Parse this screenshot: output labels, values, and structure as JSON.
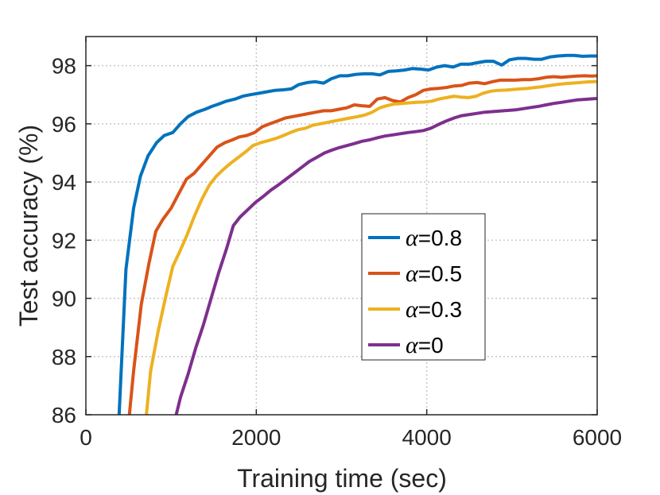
{
  "chart_data": {
    "type": "line",
    "xlabel": "Training time (sec)",
    "ylabel": "Test accuracy (%)",
    "xlim": [
      0,
      6000
    ],
    "ylim": [
      86,
      99
    ],
    "xticks": [
      0,
      2000,
      4000,
      6000
    ],
    "yticks": [
      86,
      88,
      90,
      92,
      94,
      96,
      98
    ],
    "grid": true,
    "legend_position": "center-right",
    "series": [
      {
        "name": "α=0.8",
        "color": "#0072BD",
        "x": [
          390,
          470,
          560,
          640,
          730,
          830,
          920,
          1020,
          1110,
          1200,
          1300,
          1400,
          1480,
          1560,
          1650,
          1750,
          1840,
          1930,
          2030,
          2120,
          2220,
          2320,
          2410,
          2500,
          2600,
          2690,
          2790,
          2880,
          2980,
          3070,
          3170,
          3260,
          3360,
          3450,
          3550,
          3640,
          3740,
          3830,
          3930,
          4020,
          4120,
          4210,
          4310,
          4400,
          4500,
          4590,
          4690,
          4780,
          4880,
          4970,
          5070,
          5160,
          5260,
          5350,
          5450,
          5540,
          5640,
          5730,
          5830,
          5920,
          6000
        ],
        "y": [
          86.0,
          91.0,
          93.1,
          94.2,
          94.9,
          95.35,
          95.6,
          95.7,
          96.0,
          96.25,
          96.4,
          96.5,
          96.6,
          96.68,
          96.78,
          96.85,
          96.95,
          97.0,
          97.05,
          97.1,
          97.15,
          97.17,
          97.2,
          97.35,
          97.42,
          97.45,
          97.4,
          97.55,
          97.65,
          97.65,
          97.7,
          97.72,
          97.72,
          97.68,
          97.8,
          97.82,
          97.85,
          97.9,
          97.88,
          97.85,
          97.95,
          98.0,
          97.95,
          98.05,
          98.05,
          98.1,
          98.15,
          98.15,
          98.02,
          98.2,
          98.25,
          98.25,
          98.22,
          98.22,
          98.3,
          98.33,
          98.35,
          98.35,
          98.32,
          98.33,
          98.33
        ]
      },
      {
        "name": "α=0.5",
        "color": "#D95319",
        "x": [
          510,
          560,
          650,
          740,
          820,
          900,
          1000,
          1090,
          1180,
          1270,
          1360,
          1450,
          1540,
          1630,
          1720,
          1800,
          1890,
          1980,
          2070,
          2160,
          2250,
          2340,
          2430,
          2520,
          2610,
          2700,
          2790,
          2880,
          2970,
          3060,
          3150,
          3240,
          3330,
          3420,
          3510,
          3600,
          3690,
          3780,
          3870,
          3960,
          4050,
          4140,
          4230,
          4320,
          4410,
          4500,
          4590,
          4680,
          4770,
          4860,
          4950,
          5040,
          5130,
          5220,
          5310,
          5400,
          5490,
          5580,
          5670,
          5760,
          5850,
          5940,
          6000
        ],
        "y": [
          86.0,
          87.5,
          89.8,
          91.2,
          92.3,
          92.7,
          93.1,
          93.6,
          94.1,
          94.3,
          94.6,
          94.9,
          95.2,
          95.35,
          95.45,
          95.55,
          95.6,
          95.7,
          95.9,
          96.0,
          96.1,
          96.2,
          96.25,
          96.3,
          96.35,
          96.4,
          96.45,
          96.45,
          96.5,
          96.55,
          96.65,
          96.62,
          96.6,
          96.85,
          96.9,
          96.8,
          96.75,
          96.9,
          97.0,
          97.15,
          97.2,
          97.22,
          97.25,
          97.3,
          97.32,
          97.4,
          97.42,
          97.38,
          97.45,
          97.5,
          97.5,
          97.5,
          97.52,
          97.52,
          97.55,
          97.6,
          97.62,
          97.6,
          97.62,
          97.64,
          97.65,
          97.64,
          97.65
        ]
      },
      {
        "name": "α=0.3",
        "color": "#EDB120",
        "x": [
          710,
          760,
          850,
          940,
          1020,
          1100,
          1190,
          1270,
          1360,
          1450,
          1530,
          1620,
          1700,
          1790,
          1880,
          1960,
          2050,
          2140,
          2230,
          2320,
          2400,
          2490,
          2580,
          2660,
          2750,
          2840,
          2920,
          3010,
          3100,
          3190,
          3270,
          3360,
          3450,
          3530,
          3620,
          3710,
          3790,
          3880,
          3970,
          4060,
          4140,
          4230,
          4320,
          4400,
          4490,
          4580,
          4660,
          4750,
          4840,
          4930,
          5010,
          5100,
          5190,
          5270,
          5360,
          5450,
          5530,
          5620,
          5710,
          5800,
          5880,
          5970,
          6000
        ],
        "y": [
          86.0,
          87.5,
          88.9,
          90.1,
          91.1,
          91.6,
          92.2,
          92.8,
          93.4,
          93.9,
          94.2,
          94.45,
          94.65,
          94.85,
          95.05,
          95.25,
          95.35,
          95.42,
          95.5,
          95.6,
          95.7,
          95.8,
          95.85,
          95.95,
          96.0,
          96.05,
          96.1,
          96.15,
          96.2,
          96.25,
          96.3,
          96.4,
          96.55,
          96.62,
          96.68,
          96.7,
          96.72,
          96.74,
          96.75,
          96.78,
          96.85,
          96.9,
          96.95,
          96.92,
          96.9,
          96.95,
          97.05,
          97.12,
          97.15,
          97.16,
          97.18,
          97.2,
          97.22,
          97.25,
          97.28,
          97.32,
          97.35,
          97.38,
          97.4,
          97.42,
          97.44,
          97.45,
          97.45
        ]
      },
      {
        "name": "α=0",
        "color": "#7E2F8E",
        "x": [
          1060,
          1110,
          1200,
          1290,
          1380,
          1470,
          1560,
          1650,
          1730,
          1810,
          1900,
          1990,
          2080,
          2170,
          2260,
          2350,
          2440,
          2530,
          2620,
          2710,
          2800,
          2890,
          2970,
          3060,
          3150,
          3240,
          3330,
          3420,
          3510,
          3600,
          3690,
          3780,
          3870,
          3960,
          4050,
          4140,
          4230,
          4320,
          4410,
          4500,
          4590,
          4680,
          4770,
          4860,
          4950,
          5040,
          5130,
          5220,
          5310,
          5400,
          5490,
          5580,
          5670,
          5760,
          5850,
          5940,
          6000
        ],
        "y": [
          86.0,
          86.6,
          87.4,
          88.3,
          89.1,
          90.0,
          90.9,
          91.7,
          92.5,
          92.8,
          93.05,
          93.3,
          93.5,
          93.72,
          93.9,
          94.1,
          94.3,
          94.5,
          94.7,
          94.85,
          95.0,
          95.1,
          95.18,
          95.25,
          95.32,
          95.4,
          95.45,
          95.52,
          95.58,
          95.62,
          95.66,
          95.7,
          95.73,
          95.77,
          95.85,
          95.98,
          96.1,
          96.2,
          96.28,
          96.32,
          96.36,
          96.4,
          96.42,
          96.44,
          96.46,
          96.48,
          96.52,
          96.56,
          96.6,
          96.65,
          96.7,
          96.74,
          96.78,
          96.82,
          96.84,
          96.86,
          96.87
        ]
      }
    ]
  }
}
